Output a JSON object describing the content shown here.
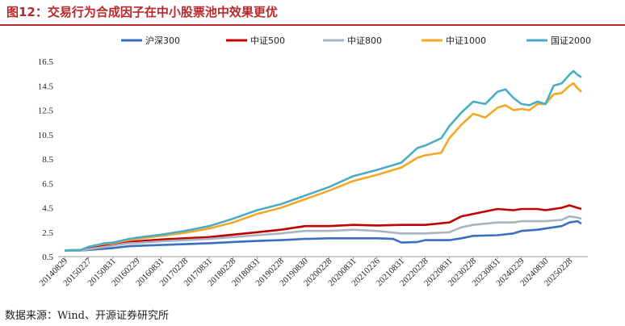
{
  "title": "图12：交易行为合成因子在中小股票池中效果更优",
  "source": "数据来源：Wind、开源证券研究所",
  "chart_data": {
    "type": "line",
    "title": "图12：交易行为合成因子在中小股票池中效果更优",
    "xlabel": "",
    "ylabel": "",
    "ylim": [
      0.5,
      16.5
    ],
    "yticks": [
      0.5,
      2.5,
      4.5,
      6.5,
      8.5,
      10.5,
      12.5,
      14.5,
      16.5
    ],
    "x_tick_labels": [
      "20140829",
      "20150227",
      "20150831",
      "20160229",
      "20160831",
      "20170228",
      "20170831",
      "20180228",
      "20180831",
      "20190228",
      "20190830",
      "20200228",
      "20200831",
      "20210226",
      "20210831",
      "20220228",
      "20220831",
      "20230228",
      "20230831",
      "20240229",
      "20240830",
      "20250228"
    ],
    "x_start": "20140829",
    "x_end": "20250530",
    "grid": false,
    "legend_position": "top",
    "series": [
      {
        "name": "沪深300",
        "color": "#3a6fc0",
        "points": [
          [
            "20140829",
            1.0
          ],
          [
            "20141231",
            1.0
          ],
          [
            "20150227",
            1.05
          ],
          [
            "20150630",
            1.15
          ],
          [
            "20150831",
            1.2
          ],
          [
            "20151231",
            1.35
          ],
          [
            "20160229",
            1.38
          ],
          [
            "20160831",
            1.45
          ],
          [
            "20170228",
            1.52
          ],
          [
            "20170831",
            1.6
          ],
          [
            "20180228",
            1.7
          ],
          [
            "20180831",
            1.78
          ],
          [
            "20190228",
            1.85
          ],
          [
            "20190830",
            1.95
          ],
          [
            "20200228",
            2.0
          ],
          [
            "20200831",
            2.0
          ],
          [
            "20210226",
            2.0
          ],
          [
            "20210630",
            1.95
          ],
          [
            "20210831",
            1.65
          ],
          [
            "20211231",
            1.7
          ],
          [
            "20220228",
            1.85
          ],
          [
            "20220831",
            1.85
          ],
          [
            "20221130",
            2.0
          ],
          [
            "20230228",
            2.2
          ],
          [
            "20230831",
            2.25
          ],
          [
            "20231231",
            2.4
          ],
          [
            "20240229",
            2.6
          ],
          [
            "20240630",
            2.7
          ],
          [
            "20240830",
            2.8
          ],
          [
            "20241231",
            3.0
          ],
          [
            "20250228",
            3.3
          ],
          [
            "20250430",
            3.4
          ],
          [
            "20250530",
            3.2
          ]
        ]
      },
      {
        "name": "中证500",
        "color": "#c00000",
        "points": [
          [
            "20140829",
            1.0
          ],
          [
            "20141231",
            1.05
          ],
          [
            "20150227",
            1.2
          ],
          [
            "20150630",
            1.4
          ],
          [
            "20150831",
            1.45
          ],
          [
            "20151231",
            1.7
          ],
          [
            "20160229",
            1.75
          ],
          [
            "20160831",
            1.9
          ],
          [
            "20170228",
            2.0
          ],
          [
            "20170831",
            2.1
          ],
          [
            "20180228",
            2.3
          ],
          [
            "20180831",
            2.5
          ],
          [
            "20190228",
            2.7
          ],
          [
            "20190830",
            3.0
          ],
          [
            "20200228",
            3.0
          ],
          [
            "20200831",
            3.1
          ],
          [
            "20210226",
            3.05
          ],
          [
            "20210831",
            3.1
          ],
          [
            "20220228",
            3.1
          ],
          [
            "20220831",
            3.3
          ],
          [
            "20221130",
            3.8
          ],
          [
            "20230228",
            4.0
          ],
          [
            "20230831",
            4.4
          ],
          [
            "20231231",
            4.3
          ],
          [
            "20240229",
            4.4
          ],
          [
            "20240630",
            4.4
          ],
          [
            "20240830",
            4.3
          ],
          [
            "20241231",
            4.5
          ],
          [
            "20250228",
            4.7
          ],
          [
            "20250430",
            4.5
          ],
          [
            "20250530",
            4.4
          ]
        ]
      },
      {
        "name": "中证800",
        "color": "#a9b4c2",
        "points": [
          [
            "20140829",
            1.0
          ],
          [
            "20141231",
            1.0
          ],
          [
            "20150227",
            1.1
          ],
          [
            "20150630",
            1.3
          ],
          [
            "20150831",
            1.4
          ],
          [
            "20151231",
            1.6
          ],
          [
            "20160229",
            1.62
          ],
          [
            "20160831",
            1.75
          ],
          [
            "20170228",
            1.85
          ],
          [
            "20170831",
            1.95
          ],
          [
            "20180228",
            2.1
          ],
          [
            "20180831",
            2.25
          ],
          [
            "20190228",
            2.4
          ],
          [
            "20190830",
            2.6
          ],
          [
            "20200228",
            2.6
          ],
          [
            "20200831",
            2.7
          ],
          [
            "20210226",
            2.6
          ],
          [
            "20210831",
            2.4
          ],
          [
            "20220228",
            2.4
          ],
          [
            "20220831",
            2.5
          ],
          [
            "20221130",
            2.9
          ],
          [
            "20230228",
            3.1
          ],
          [
            "20230831",
            3.3
          ],
          [
            "20231231",
            3.3
          ],
          [
            "20240229",
            3.4
          ],
          [
            "20240630",
            3.4
          ],
          [
            "20240830",
            3.4
          ],
          [
            "20241231",
            3.5
          ],
          [
            "20250228",
            3.8
          ],
          [
            "20250430",
            3.7
          ],
          [
            "20250530",
            3.6
          ]
        ]
      },
      {
        "name": "中证1000",
        "color": "#f5a623",
        "points": [
          [
            "20140829",
            1.0
          ],
          [
            "20141231",
            1.05
          ],
          [
            "20150227",
            1.3
          ],
          [
            "20150630",
            1.55
          ],
          [
            "20150831",
            1.6
          ],
          [
            "20151231",
            1.85
          ],
          [
            "20160229",
            1.95
          ],
          [
            "20160831",
            2.2
          ],
          [
            "20170228",
            2.45
          ],
          [
            "20170831",
            2.8
          ],
          [
            "20180228",
            3.3
          ],
          [
            "20180831",
            4.0
          ],
          [
            "20190228",
            4.5
          ],
          [
            "20190830",
            5.2
          ],
          [
            "20200228",
            5.9
          ],
          [
            "20200831",
            6.7
          ],
          [
            "20210226",
            7.2
          ],
          [
            "20210630",
            7.6
          ],
          [
            "20210831",
            7.8
          ],
          [
            "20211231",
            8.6
          ],
          [
            "20220228",
            8.8
          ],
          [
            "20220630",
            9.0
          ],
          [
            "20220831",
            10.2
          ],
          [
            "20221130",
            11.3
          ],
          [
            "20230228",
            12.2
          ],
          [
            "20230531",
            11.9
          ],
          [
            "20230831",
            12.7
          ],
          [
            "20231031",
            12.9
          ],
          [
            "20231231",
            12.5
          ],
          [
            "20240229",
            12.6
          ],
          [
            "20240430",
            12.5
          ],
          [
            "20240630",
            13.0
          ],
          [
            "20240830",
            13.0
          ],
          [
            "20241031",
            13.8
          ],
          [
            "20241231",
            13.9
          ],
          [
            "20250228",
            14.5
          ],
          [
            "20250331",
            14.7
          ],
          [
            "20250430",
            14.3
          ],
          [
            "20250530",
            14.0
          ]
        ]
      },
      {
        "name": "国证2000",
        "color": "#4bacc6",
        "points": [
          [
            "20140829",
            1.0
          ],
          [
            "20141231",
            1.05
          ],
          [
            "20150227",
            1.3
          ],
          [
            "20150630",
            1.6
          ],
          [
            "20150831",
            1.65
          ],
          [
            "20151231",
            1.95
          ],
          [
            "20160229",
            2.05
          ],
          [
            "20160831",
            2.3
          ],
          [
            "20170228",
            2.6
          ],
          [
            "20170831",
            3.0
          ],
          [
            "20180228",
            3.6
          ],
          [
            "20180831",
            4.3
          ],
          [
            "20190228",
            4.8
          ],
          [
            "20190830",
            5.5
          ],
          [
            "20200228",
            6.2
          ],
          [
            "20200831",
            7.1
          ],
          [
            "20210226",
            7.6
          ],
          [
            "20210630",
            8.0
          ],
          [
            "20210831",
            8.2
          ],
          [
            "20211231",
            9.4
          ],
          [
            "20220228",
            9.6
          ],
          [
            "20220630",
            10.2
          ],
          [
            "20220831",
            11.2
          ],
          [
            "20221130",
            12.3
          ],
          [
            "20230228",
            13.2
          ],
          [
            "20230531",
            13.0
          ],
          [
            "20230831",
            14.0
          ],
          [
            "20231031",
            14.2
          ],
          [
            "20231231",
            13.5
          ],
          [
            "20240229",
            13.0
          ],
          [
            "20240430",
            12.9
          ],
          [
            "20240630",
            13.2
          ],
          [
            "20240830",
            13.0
          ],
          [
            "20241031",
            14.5
          ],
          [
            "20241231",
            14.7
          ],
          [
            "20250228",
            15.4
          ],
          [
            "20250331",
            15.7
          ],
          [
            "20250430",
            15.4
          ],
          [
            "20250530",
            15.2
          ]
        ]
      }
    ]
  }
}
